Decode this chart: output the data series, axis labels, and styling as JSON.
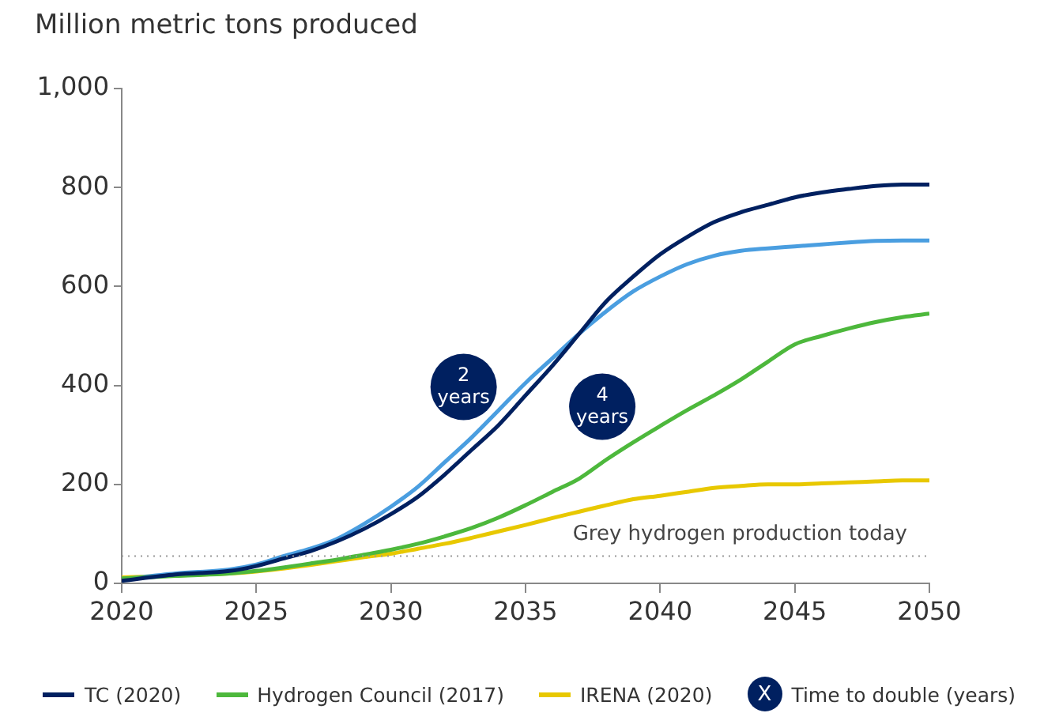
{
  "chart_data": {
    "type": "line",
    "title": "Million metric tons produced",
    "x": [
      2020,
      2022,
      2024,
      2025,
      2026,
      2027,
      2028,
      2029,
      2030,
      2031,
      2032,
      2033,
      2034,
      2035,
      2036,
      2037,
      2038,
      2039,
      2040,
      2041,
      2042,
      2043,
      2044,
      2045,
      2046,
      2047,
      2048,
      2049,
      2050
    ],
    "series": [
      {
        "name": "TC (2020)",
        "color": "#002060",
        "values": [
          5,
          18,
          25,
          35,
          50,
          65,
          85,
          110,
          140,
          175,
          220,
          270,
          320,
          380,
          440,
          505,
          570,
          620,
          665,
          700,
          730,
          750,
          765,
          780,
          790,
          797,
          803,
          806,
          806
        ]
      },
      {
        "name": "Hydrogen Council (2017)",
        "color": "#4db83c",
        "values": [
          10,
          15,
          20,
          25,
          32,
          40,
          48,
          58,
          68,
          80,
          95,
          112,
          133,
          158,
          185,
          212,
          250,
          285,
          318,
          350,
          380,
          412,
          448,
          483,
          500,
          515,
          528,
          538,
          545
        ]
      },
      {
        "color": "#4a9ee0",
        "values": [
          8,
          20,
          28,
          38,
          55,
          70,
          90,
          120,
          155,
          195,
          245,
          295,
          350,
          405,
          455,
          505,
          550,
          590,
          620,
          645,
          662,
          672,
          677,
          681,
          685,
          689,
          692,
          693,
          693
        ]
      },
      {
        "name": "IRENA (2020)",
        "color": "#e8c800",
        "values": [
          12,
          16,
          20,
          24,
          30,
          37,
          45,
          53,
          60,
          70,
          80,
          92,
          105,
          118,
          132,
          145,
          158,
          170,
          177,
          185,
          193,
          197,
          200,
          200,
          202,
          204,
          206,
          208,
          208
        ]
      }
    ],
    "xlim": [
      2020,
      2050
    ],
    "xticks": [
      2020,
      2025,
      2030,
      2035,
      2040,
      2045,
      2050
    ],
    "ylim": [
      0,
      1000
    ],
    "yticks": [
      0,
      200,
      400,
      600,
      800,
      {
        "value": 1000,
        "label": "1,000"
      }
    ],
    "ref_lines": [
      {
        "axis": "y",
        "value": 55,
        "label": "Grey hydrogen production today",
        "color": "#999999",
        "line_style": "dotted"
      }
    ],
    "annotations": [
      {
        "text": "2 years",
        "x": 2032.7,
        "y": 397
      },
      {
        "text": "4 years",
        "x": 2037.85,
        "y": 357
      },
      "X",
      "Time to double (years)"
    ],
    "grid": false,
    "legend": "bottom",
    "marker": "none",
    "line_style": "solid"
  }
}
